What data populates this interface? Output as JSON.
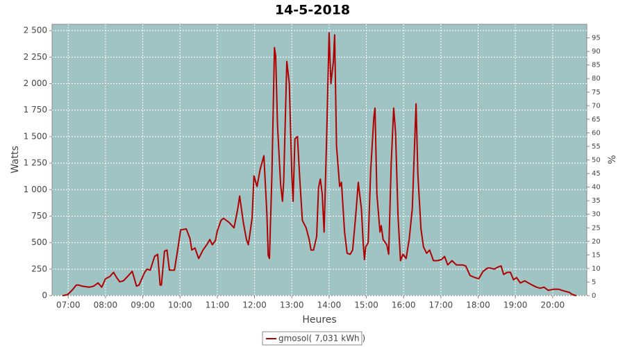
{
  "chart_data": {
    "type": "line",
    "title": "14-5-2018",
    "xlabel": "Heures",
    "ylabel": "Watts",
    "y2label": "%",
    "x": [
      "06:51",
      "06:59",
      "07:06",
      "07:13",
      "07:17",
      "07:22",
      "07:34",
      "07:41",
      "07:48",
      "07:54",
      "08:00",
      "08:07",
      "08:13",
      "08:18",
      "08:23",
      "08:29",
      "08:37",
      "08:43",
      "08:50",
      "08:54",
      "09:03",
      "09:07",
      "09:12",
      "09:19",
      "09:24",
      "09:28",
      "09:30",
      "09:35",
      "09:39",
      "09:43",
      "09:51",
      "09:57",
      "10:01",
      "10:10",
      "10:16",
      "10:19",
      "10:24",
      "10:30",
      "10:37",
      "10:43",
      "10:48",
      "10:52",
      "10:57",
      "11:00",
      "11:06",
      "11:10",
      "11:19",
      "11:27",
      "11:33",
      "11:36",
      "11:42",
      "11:47",
      "11:50",
      "11:56",
      "11:59",
      "12:04",
      "12:09",
      "12:15",
      "12:20",
      "12:22",
      "12:24",
      "12:28",
      "12:32",
      "12:34",
      "12:37",
      "12:42",
      "12:45",
      "12:47",
      "12:52",
      "12:56",
      "13:00",
      "13:02",
      "13:05",
      "13:09",
      "13:13",
      "13:17",
      "13:23",
      "13:28",
      "13:31",
      "13:35",
      "13:40",
      "13:43",
      "13:46",
      "13:49",
      "13:52",
      "13:56",
      "14:00",
      "14:03",
      "14:07",
      "14:09",
      "14:12",
      "14:17",
      "14:20",
      "14:25",
      "14:29",
      "14:34",
      "14:38",
      "14:43",
      "14:47",
      "14:52",
      "14:55",
      "14:57",
      "14:59",
      "15:03",
      "15:07",
      "15:12",
      "15:14",
      "15:17",
      "15:22",
      "15:24",
      "15:27",
      "15:33",
      "15:36",
      "15:40",
      "15:44",
      "15:47",
      "15:51",
      "15:55",
      "15:59",
      "16:04",
      "16:09",
      "16:14",
      "16:18",
      "16:20",
      "16:23",
      "16:28",
      "16:32",
      "16:37",
      "16:42",
      "16:48",
      "16:54",
      "17:01",
      "17:06",
      "17:11",
      "17:18",
      "17:25",
      "17:35",
      "17:40",
      "17:47",
      "17:55",
      "18:01",
      "18:08",
      "18:15",
      "18:20",
      "18:26",
      "18:32",
      "18:37",
      "18:41",
      "18:47",
      "18:52",
      "18:57",
      "19:02",
      "19:08",
      "19:15",
      "19:21",
      "19:27",
      "19:34",
      "19:40",
      "19:46",
      "19:53",
      "20:01",
      "20:10",
      "20:15",
      "20:21",
      "20:27",
      "20:32",
      "20:38"
    ],
    "series": [
      {
        "name": "gmosol( 7,031 kWh )",
        "color": "#b00000",
        "values": [
          0,
          10,
          50,
          100,
          100,
          90,
          80,
          90,
          120,
          80,
          160,
          180,
          220,
          170,
          130,
          140,
          190,
          230,
          90,
          100,
          220,
          250,
          240,
          370,
          390,
          100,
          100,
          420,
          430,
          240,
          240,
          460,
          620,
          630,
          540,
          430,
          450,
          350,
          430,
          480,
          530,
          480,
          520,
          610,
          710,
          730,
          690,
          640,
          820,
          940,
          690,
          530,
          480,
          730,
          1130,
          1030,
          1190,
          1320,
          760,
          380,
          350,
          1150,
          2340,
          2260,
          1610,
          1050,
          890,
          1090,
          2210,
          2000,
          1150,
          890,
          1480,
          1500,
          1090,
          710,
          640,
          530,
          430,
          430,
          560,
          1020,
          1100,
          960,
          600,
          1480,
          2480,
          2000,
          2210,
          2460,
          1410,
          1030,
          1070,
          600,
          400,
          390,
          430,
          760,
          1070,
          820,
          500,
          340,
          460,
          500,
          1180,
          1680,
          1770,
          960,
          600,
          660,
          530,
          480,
          390,
          1240,
          1770,
          1540,
          760,
          330,
          390,
          350,
          530,
          820,
          1480,
          1810,
          1150,
          630,
          460,
          400,
          430,
          330,
          330,
          340,
          370,
          290,
          330,
          290,
          290,
          280,
          190,
          170,
          160,
          230,
          260,
          260,
          250,
          270,
          280,
          200,
          220,
          220,
          150,
          170,
          120,
          140,
          120,
          100,
          80,
          70,
          80,
          50,
          60,
          60,
          50,
          40,
          30,
          10,
          0
        ]
      }
    ],
    "xlim": [
      "06:34",
      "20:55"
    ],
    "xticks": [
      "07:00",
      "08:00",
      "09:00",
      "10:00",
      "11:00",
      "12:00",
      "13:00",
      "14:00",
      "15:00",
      "16:00",
      "17:00",
      "18:00",
      "19:00",
      "20:00"
    ],
    "ylim": [
      0,
      2560
    ],
    "yticks": [
      0,
      250,
      500,
      750,
      {
        "value": 1000,
        "label": "1 000"
      },
      {
        "value": 1250,
        "label": "1 250"
      },
      {
        "value": 1500,
        "label": "1 500"
      },
      {
        "value": 1750,
        "label": "1 750"
      },
      {
        "value": 2000,
        "label": "2 000"
      },
      {
        "value": 2250,
        "label": "2 250"
      },
      {
        "value": 2500,
        "label": "2 500"
      }
    ],
    "y2lim": [
      0,
      100
    ],
    "y2ticks": [
      0,
      5,
      10,
      15,
      20,
      25,
      30,
      35,
      40,
      45,
      50,
      55,
      60,
      65,
      70,
      75,
      80,
      85,
      90,
      95
    ],
    "grid": true,
    "legend": "bottom"
  }
}
